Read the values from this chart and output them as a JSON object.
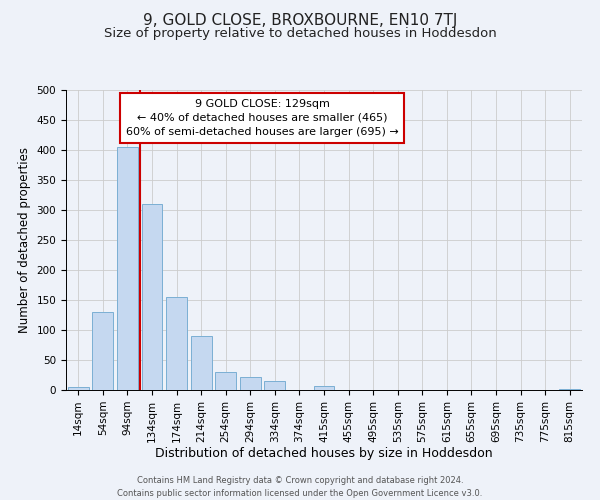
{
  "title": "9, GOLD CLOSE, BROXBOURNE, EN10 7TJ",
  "subtitle": "Size of property relative to detached houses in Hoddesdon",
  "xlabel": "Distribution of detached houses by size in Hoddesdon",
  "ylabel": "Number of detached properties",
  "footer_line1": "Contains HM Land Registry data © Crown copyright and database right 2024.",
  "footer_line2": "Contains public sector information licensed under the Open Government Licence v3.0.",
  "bar_labels": [
    "14sqm",
    "54sqm",
    "94sqm",
    "134sqm",
    "174sqm",
    "214sqm",
    "254sqm",
    "294sqm",
    "334sqm",
    "374sqm",
    "415sqm",
    "455sqm",
    "495sqm",
    "535sqm",
    "575sqm",
    "615sqm",
    "655sqm",
    "695sqm",
    "735sqm",
    "775sqm",
    "815sqm"
  ],
  "bar_values": [
    5,
    130,
    405,
    310,
    155,
    90,
    30,
    22,
    15,
    0,
    7,
    0,
    0,
    0,
    0,
    0,
    0,
    0,
    0,
    0,
    2
  ],
  "bar_color": "#c5d8f0",
  "bar_edgecolor": "#7bafd4",
  "ylim": [
    0,
    500
  ],
  "yticks": [
    0,
    50,
    100,
    150,
    200,
    250,
    300,
    350,
    400,
    450,
    500
  ],
  "property_label": "9 GOLD CLOSE: 129sqm",
  "annotation_line1": "← 40% of detached houses are smaller (465)",
  "annotation_line2": "60% of semi-detached houses are larger (695) →",
  "vline_bar_index": 3,
  "vline_color": "#cc0000",
  "annotation_box_color": "#ffffff",
  "annotation_box_edgecolor": "#cc0000",
  "background_color": "#eef2f9",
  "grid_color": "#cccccc",
  "title_fontsize": 11,
  "subtitle_fontsize": 9.5,
  "xlabel_fontsize": 9,
  "ylabel_fontsize": 8.5,
  "tick_fontsize": 7.5,
  "footer_fontsize": 6,
  "annot_fontsize": 8
}
